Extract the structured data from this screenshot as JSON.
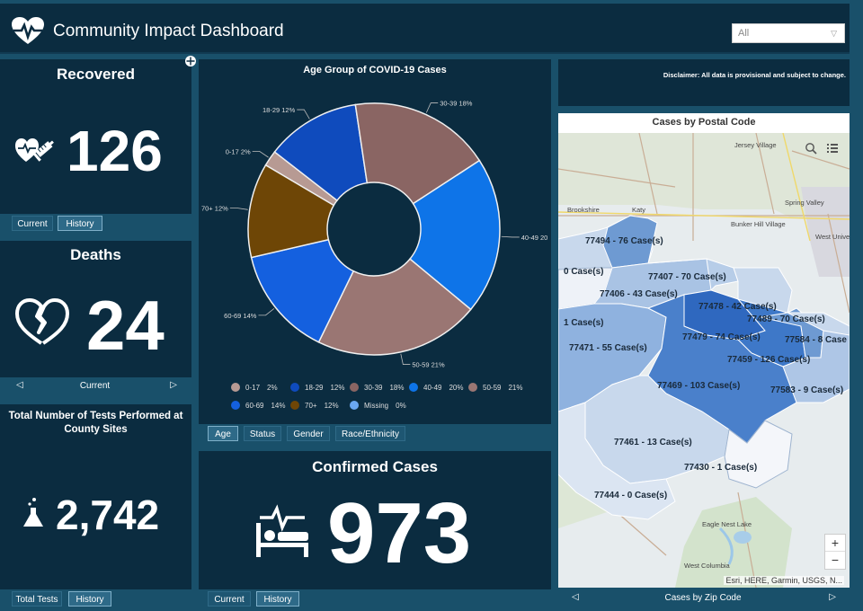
{
  "header": {
    "title": "Community Impact Dashboard",
    "selector_value": "All"
  },
  "recovered": {
    "title": "Recovered",
    "value": "126",
    "tabs": [
      "Current",
      "History"
    ]
  },
  "deaths": {
    "title": "Deaths",
    "value": "24",
    "nav_label": "Current",
    "prev": "◁",
    "next": "▷"
  },
  "tests": {
    "title": "Total Number of Tests Performed at County Sites",
    "value": "2,742",
    "tabs": [
      "Total Tests",
      "History"
    ]
  },
  "age_chart": {
    "tabs": [
      "Age",
      "Status",
      "Gender",
      "Race/Ethnicity"
    ],
    "slice_labels": [
      "30-39 18%",
      "40-49 20",
      "50-59 21%",
      "60-69 14%",
      "70+ 12%",
      "0-17 2%",
      "18-29 12%"
    ],
    "legend": [
      {
        "label": "0-17",
        "pct": "2%",
        "color": "#b79a93"
      },
      {
        "label": "18-29",
        "pct": "12%",
        "color": "#0f4bbd"
      },
      {
        "label": "30-39",
        "pct": "18%",
        "color": "#8a6563"
      },
      {
        "label": "40-49",
        "pct": "20%",
        "color": "#0e74e8"
      },
      {
        "label": "50-59",
        "pct": "21%",
        "color": "#9a7673"
      },
      {
        "label": "60-69",
        "pct": "14%",
        "color": "#1460df"
      },
      {
        "label": "70+",
        "pct": "12%",
        "color": "#6e4606"
      },
      {
        "label": "Missing",
        "pct": "0%",
        "color": "#6aa8f2"
      }
    ]
  },
  "chart_data": {
    "type": "pie",
    "title": "Age Group of COVID-19 Cases",
    "categories": [
      "0-17",
      "18-29",
      "30-39",
      "40-49",
      "50-59",
      "60-69",
      "70+",
      "Missing"
    ],
    "values": [
      2,
      12,
      18,
      20,
      21,
      14,
      12,
      0
    ],
    "legend_position": "bottom",
    "donut": true
  },
  "confirmed": {
    "title": "Confirmed Cases",
    "value": "973",
    "tabs": [
      "Current",
      "History"
    ]
  },
  "disclaimer": "Disclaimer: All data is provisional and subject to change.",
  "map": {
    "title": "Cases by Postal Code",
    "attribution": "Esri, HERE, Garmin, USGS, N...",
    "nav_label": "Cases by Zip Code",
    "prev": "◁",
    "next": "▷",
    "zoom_in": "+",
    "zoom_out": "−",
    "towns": [
      "Jersey Village",
      "Spring Valley",
      "Brookshire",
      "Katy",
      "Bunker Hill Village",
      "West University Place",
      "Eagle Nest Lake",
      "West Columbia"
    ],
    "zips": [
      "77494 - 76 Case(s)",
      "0 Case(s)",
      "77407 - 70 Case(s)",
      "77406 - 43 Case(s)",
      "77478 - 42 Case(s)",
      "77489 - 70 Case(s)",
      "1 Case(s)",
      "77479 - 74 Case(s)",
      "77584 - 8 Case",
      "77471 - 55 Case(s)",
      "77459 - 126 Case(s)",
      "77469 - 103 Case(s)",
      "77583 - 9 Case(s)",
      "77461 - 13 Case(s)",
      "77430 - 1 Case(s)",
      "77444 - 0 Case(s)"
    ]
  }
}
